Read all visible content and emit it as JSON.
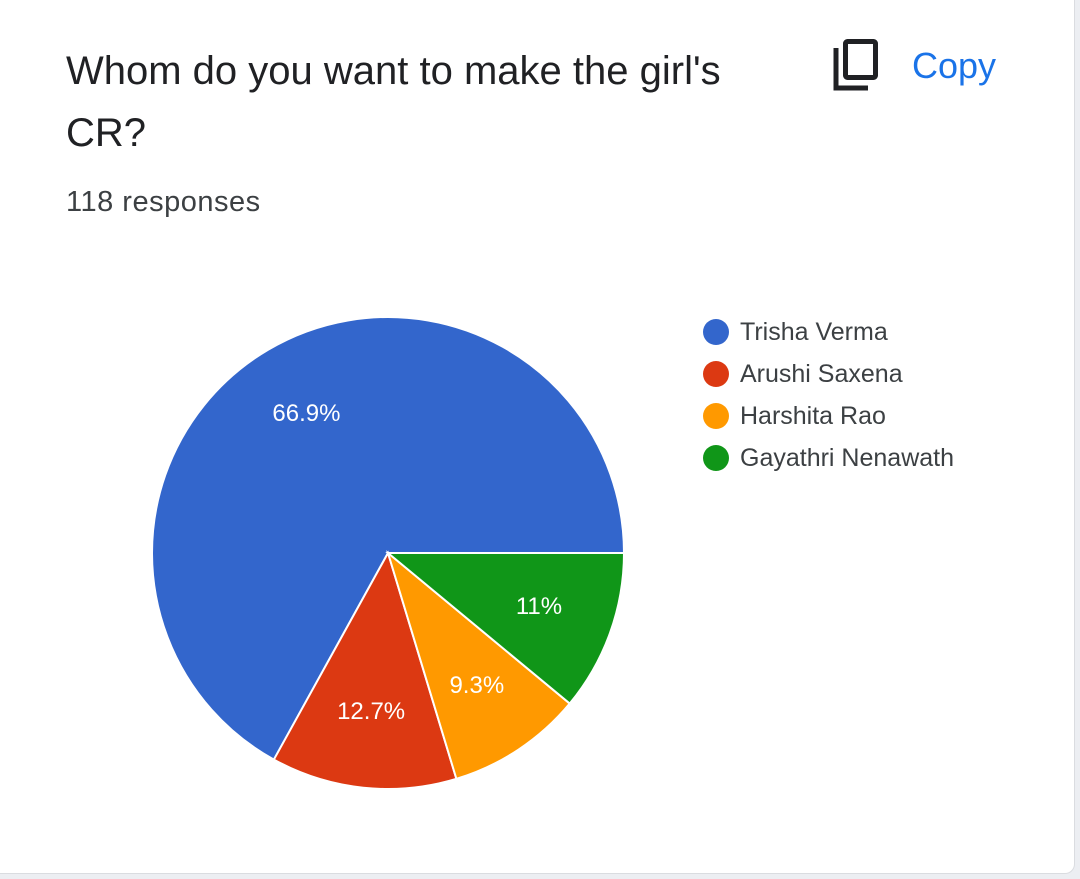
{
  "header": {
    "title": "Whom do you want to make the girl's CR?",
    "copy_label": "Copy",
    "copy_icon": "copy-icon"
  },
  "summary": {
    "responses": "118 responses"
  },
  "colors": {
    "link": "#1a73e8",
    "slice_border": "#ffffff"
  },
  "chart_data": {
    "type": "pie",
    "title": "",
    "legend_position": "right",
    "labels": [
      "Trisha Verma",
      "Arushi Saxena",
      "Harshita Rao",
      "Gayathri Nenawath"
    ],
    "values": [
      66.9,
      12.7,
      9.3,
      11
    ],
    "value_labels": [
      "66.9%",
      "12.7%",
      "9.3%",
      "11%"
    ],
    "colors": [
      "#3366cc",
      "#dc3912",
      "#ff9900",
      "#109618"
    ],
    "start_direction": "east",
    "direction": "counter-clockwise"
  }
}
